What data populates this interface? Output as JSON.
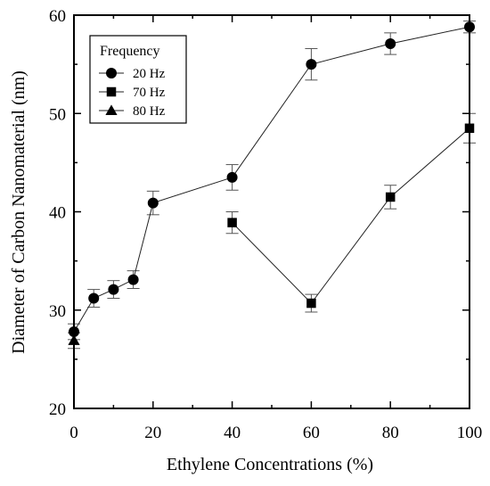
{
  "chart_data": {
    "type": "line",
    "xlabel": "Ethylene Concentrations (%)",
    "ylabel": "Diameter of Carbon Nanomaterial (nm)",
    "xlim": [
      0,
      100
    ],
    "ylim": [
      20,
      60
    ],
    "xticks": [
      0,
      20,
      40,
      60,
      80,
      100
    ],
    "yticks": [
      20,
      30,
      40,
      50,
      60
    ],
    "grid": false,
    "legend": {
      "title": "Frequency",
      "position": "top-left"
    },
    "series": [
      {
        "name": "20 Hz",
        "marker": "circle",
        "x": [
          0,
          5,
          10,
          15,
          20,
          40,
          60,
          80,
          100
        ],
        "y": [
          27.8,
          31.2,
          32.1,
          33.1,
          40.9,
          43.5,
          55.0,
          57.1,
          58.8
        ],
        "err": [
          0.8,
          0.9,
          0.9,
          0.9,
          1.2,
          1.3,
          1.6,
          1.1,
          0.6
        ]
      },
      {
        "name": "70 Hz",
        "marker": "square",
        "x": [
          40,
          60,
          80,
          100
        ],
        "y": [
          38.9,
          30.7,
          41.5,
          48.5
        ],
        "err": [
          1.1,
          0.9,
          1.2,
          1.5
        ]
      },
      {
        "name": "80 Hz",
        "marker": "triangle",
        "x": [
          0
        ],
        "y": [
          26.9
        ],
        "err": [
          0.8
        ]
      }
    ]
  }
}
